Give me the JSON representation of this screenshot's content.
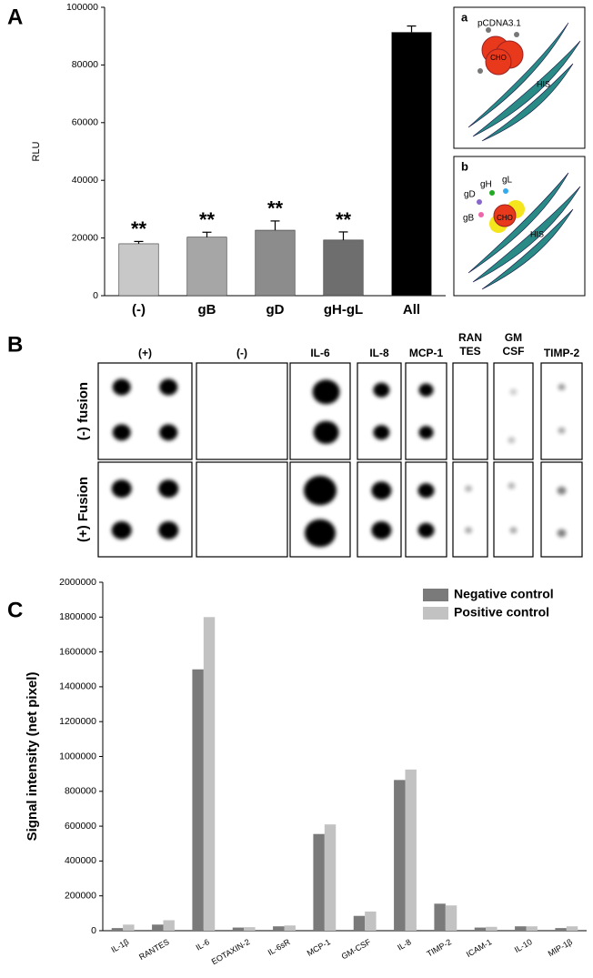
{
  "panel_labels": [
    "A",
    "B",
    "C"
  ],
  "chart_data": [
    {
      "type": "bar",
      "y_label": "RLU",
      "categories": [
        "(-)",
        "gB",
        "gD",
        "gH-gL",
        "All"
      ],
      "values": [
        18000,
        20300,
        22700,
        19300,
        91300
      ],
      "errors": [
        800,
        1700,
        3200,
        2800,
        2200
      ],
      "annotations": [
        "**",
        "**",
        "**",
        "**",
        null
      ],
      "colors": [
        "#c8c8c8",
        "#a6a6a6",
        "#8c8c8c",
        "#6e6e6e",
        "#000000"
      ],
      "ylim": [
        0,
        100000
      ],
      "yticks": [
        0,
        20000,
        40000,
        60000,
        80000,
        100000
      ]
    },
    {
      "type": "grouped-bar",
      "y_label": "Signal intensity (net pixel)",
      "categories": [
        "IL-1β",
        "RANTES",
        "IL-6",
        "EOTAXIN-2",
        "IL-6sR",
        "MCP-1",
        "GM-CSF",
        "IL-8",
        "TIMP-2",
        "ICAM-1",
        "IL-10",
        "MIP-1β"
      ],
      "series": [
        {
          "name": "Negative control",
          "color": "#7a7a7a",
          "values": [
            15000,
            35000,
            1500000,
            18000,
            25000,
            555000,
            85000,
            865000,
            155000,
            18000,
            25000,
            15000
          ]
        },
        {
          "name": "Positive control",
          "color": "#c2c2c2",
          "values": [
            35000,
            60000,
            1800000,
            20000,
            30000,
            610000,
            110000,
            925000,
            145000,
            22000,
            25000,
            25000
          ]
        }
      ],
      "ylim": [
        0,
        2000000
      ],
      "yticks": [
        0,
        200000,
        400000,
        600000,
        800000,
        1000000,
        1200000,
        1400000,
        1600000,
        1800000,
        2000000
      ],
      "legend": "top-right"
    }
  ],
  "diagrams": [
    {
      "label": "a",
      "vector": "pCDNA3.1",
      "cell": "CHO",
      "tissue": "HIS"
    },
    {
      "label": "b",
      "proteins": [
        "gH",
        "gL",
        "gD",
        "gB"
      ],
      "cell": "CHO",
      "tissue": "HIS"
    }
  ],
  "blot": {
    "columns": [
      "(+)",
      "(-)",
      "IL-6",
      "IL-8",
      "MCP-1",
      [
        "RAN",
        "TES"
      ],
      [
        "GM",
        "CSF"
      ],
      "TIMP-2"
    ],
    "rows": [
      "(-) fusion",
      "(+) Fusion"
    ]
  }
}
